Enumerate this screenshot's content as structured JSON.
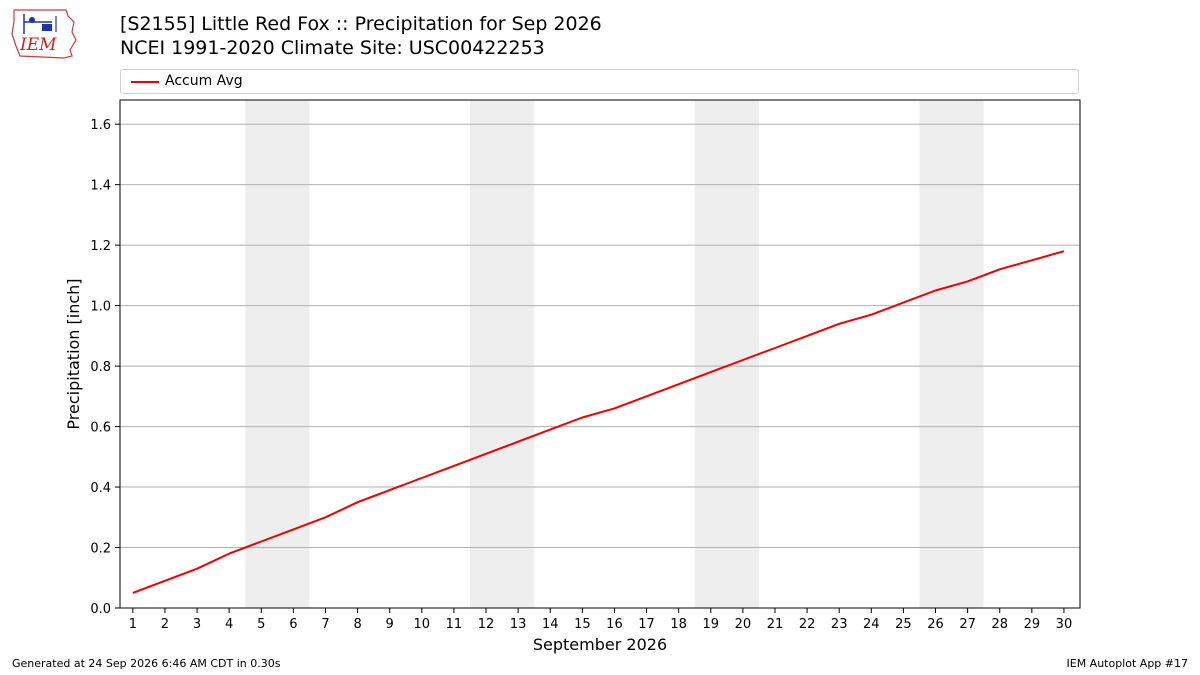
{
  "header": {
    "logo_text": "IEM",
    "title_line1": "[S2155] Little Red Fox :: Precipitation for Sep 2026",
    "title_line2": "NCEI 1991-2020 Climate Site: USC00422253"
  },
  "footer": {
    "generated": "Generated at 24 Sep 2026 6:46 AM CDT in 0.30s",
    "app": "IEM Autoplot App #17"
  },
  "colors": {
    "series": "#ee0000",
    "weekend": "#eeeeee",
    "grid": "#b0b0b0"
  },
  "chart_data": {
    "type": "line",
    "xlabel": "September 2026",
    "ylabel": "Precipitation [inch]",
    "xlim": [
      0.6,
      30.5
    ],
    "ylim": [
      0.0,
      1.68
    ],
    "yticks": [
      0.0,
      0.2,
      0.4,
      0.6,
      0.8,
      1.0,
      1.2,
      1.4,
      1.6
    ],
    "ytick_labels": [
      "0.0",
      "0.2",
      "0.4",
      "0.6",
      "0.8",
      "1.0",
      "1.2",
      "1.4",
      "1.6"
    ],
    "x": [
      1,
      2,
      3,
      4,
      5,
      6,
      7,
      8,
      9,
      10,
      11,
      12,
      13,
      14,
      15,
      16,
      17,
      18,
      19,
      20,
      21,
      22,
      23,
      24,
      25,
      26,
      27,
      28,
      29,
      30
    ],
    "grid": "horizontal",
    "legend_position": "top",
    "shaded_ranges": [
      [
        4.5,
        6.5
      ],
      [
        11.5,
        13.5
      ],
      [
        18.5,
        20.5
      ],
      [
        25.5,
        27.5
      ]
    ],
    "series": [
      {
        "name": "Accum Avg",
        "values": [
          0.05,
          0.09,
          0.13,
          0.18,
          0.22,
          0.26,
          0.3,
          0.35,
          0.39,
          0.43,
          0.47,
          0.51,
          0.55,
          0.59,
          0.63,
          0.66,
          0.7,
          0.74,
          0.78,
          0.82,
          0.86,
          0.9,
          0.94,
          0.97,
          1.01,
          1.05,
          1.08,
          1.12,
          1.15,
          1.18
        ]
      }
    ]
  }
}
